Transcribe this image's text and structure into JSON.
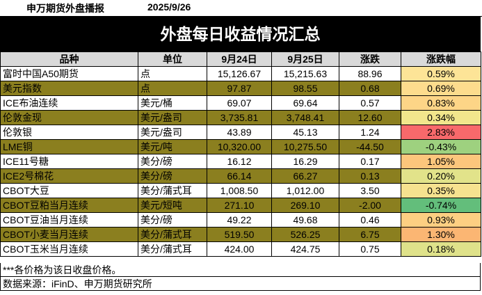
{
  "header": {
    "org": "申万期货外盘播报",
    "date": "2025/9/26"
  },
  "title": "外盘每日收益情况汇总",
  "table": {
    "columns": [
      "品种",
      "单位",
      "9月24日",
      "9月25日",
      "涨跌",
      "涨跌幅"
    ],
    "rows": [
      {
        "name": "富时中国A50期货",
        "unit": "点",
        "d24": "15,126.67",
        "d25": "15,215.63",
        "chg": "88.96",
        "pct": "0.59%",
        "pct_color": "#fde497"
      },
      {
        "name": "美元指数",
        "unit": "点",
        "d24": "97.87",
        "d25": "98.55",
        "chg": "0.68",
        "pct": "0.69%",
        "pct_color": "#fddc8d"
      },
      {
        "name": "ICE布油连续",
        "unit": "美元/桶",
        "d24": "69.07",
        "d25": "69.64",
        "chg": "0.57",
        "pct": "0.83%",
        "pct_color": "#fdd587"
      },
      {
        "name": "伦敦金现",
        "unit": "美元/盎司",
        "d24": "3,735.81",
        "d25": "3,748.41",
        "chg": "12.60",
        "pct": "0.34%",
        "pct_color": "#f1e68c"
      },
      {
        "name": "伦敦银",
        "unit": "美元/盎司",
        "d24": "43.89",
        "d25": "45.13",
        "chg": "1.24",
        "pct": "2.83%",
        "pct_color": "#f8696b"
      },
      {
        "name": "LME铜",
        "unit": "美元/吨",
        "d24": "10,320.00",
        "d25": "10,275.50",
        "chg": "-44.50",
        "pct": "-0.43%",
        "pct_color": "#9ed17f"
      },
      {
        "name": "ICE11号糖",
        "unit": "美分/磅",
        "d24": "16.12",
        "d25": "16.29",
        "chg": "0.17",
        "pct": "1.05%",
        "pct_color": "#fcc67c"
      },
      {
        "name": "ICE2号棉花",
        "unit": "美分/磅",
        "d24": "66.14",
        "d25": "66.27",
        "chg": "0.13",
        "pct": "0.20%",
        "pct_color": "#e2e38a"
      },
      {
        "name": "CBOT大豆",
        "unit": "美分/蒲式耳",
        "d24": "1,008.50",
        "d25": "1,012.00",
        "chg": "3.50",
        "pct": "0.35%",
        "pct_color": "#f6e28f"
      },
      {
        "name": "CBOT豆粕当月连续",
        "unit": "美元/短吨",
        "d24": "271.10",
        "d25": "269.10",
        "chg": "-2.00",
        "pct": "-0.74%",
        "pct_color": "#63be7b"
      },
      {
        "name": "CBOT豆油当月连续",
        "unit": "美分/磅",
        "d24": "49.22",
        "d25": "49.68",
        "chg": "0.46",
        "pct": "0.93%",
        "pct_color": "#fdcf82"
      },
      {
        "name": "CBOT小麦当月连续",
        "unit": "美分/蒲式耳",
        "d24": "519.50",
        "d25": "526.25",
        "chg": "6.75",
        "pct": "1.30%",
        "pct_color": "#fbb673"
      },
      {
        "name": "CBOT玉米当月连续",
        "unit": "美分/蒲式耳",
        "d24": "424.00",
        "d25": "424.75",
        "chg": "0.75",
        "pct": "0.18%",
        "pct_color": "#dfe28a"
      }
    ]
  },
  "notes": {
    "price_note": "***各价格为该日收盘价格。",
    "source": "数据来源：iFinD、申万期货研究所"
  }
}
